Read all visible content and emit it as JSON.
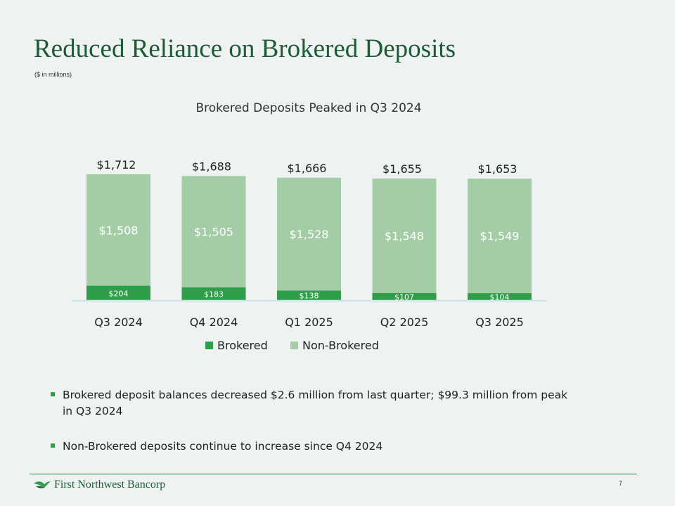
{
  "slide": {
    "title": "Reduced Reliance on Brokered Deposits",
    "subtitle": "($ in millions)",
    "page_number": "7",
    "logo_text": "First Northwest Bancorp"
  },
  "bullets": [
    "Brokered deposit balances decreased $2.6 million from last quarter; $99.3 million from peak in Q3 2024",
    "Non-Brokered deposits continue to increase since Q4 2024"
  ],
  "colors": {
    "brokered": "#2f9d4a",
    "non_brokered": "#a4cca7",
    "title_green": "#1d5a36",
    "background": "#eef3f1"
  },
  "chart_data": {
    "type": "bar",
    "stacked": true,
    "title": "Brokered Deposits Peaked in Q3 2024",
    "categories": [
      "Q3 2024",
      "Q4 2024",
      "Q1 2025",
      "Q2 2025",
      "Q3 2025"
    ],
    "series": [
      {
        "name": "Brokered",
        "values": [
          204,
          183,
          138,
          107,
          104
        ],
        "labels": [
          "$204",
          "$183",
          "$138",
          "$107",
          "$104"
        ]
      },
      {
        "name": "Non-Brokered",
        "values": [
          1508,
          1505,
          1528,
          1548,
          1549
        ],
        "labels": [
          "$1,508",
          "$1,505",
          "$1,528",
          "$1,548",
          "$1,549"
        ]
      }
    ],
    "totals": [
      1712,
      1688,
      1666,
      1655,
      1653
    ],
    "total_labels": [
      "$1,712",
      "$1,688",
      "$1,666",
      "$1,655",
      "$1,653"
    ],
    "legend": "bottom",
    "grid": false
  }
}
